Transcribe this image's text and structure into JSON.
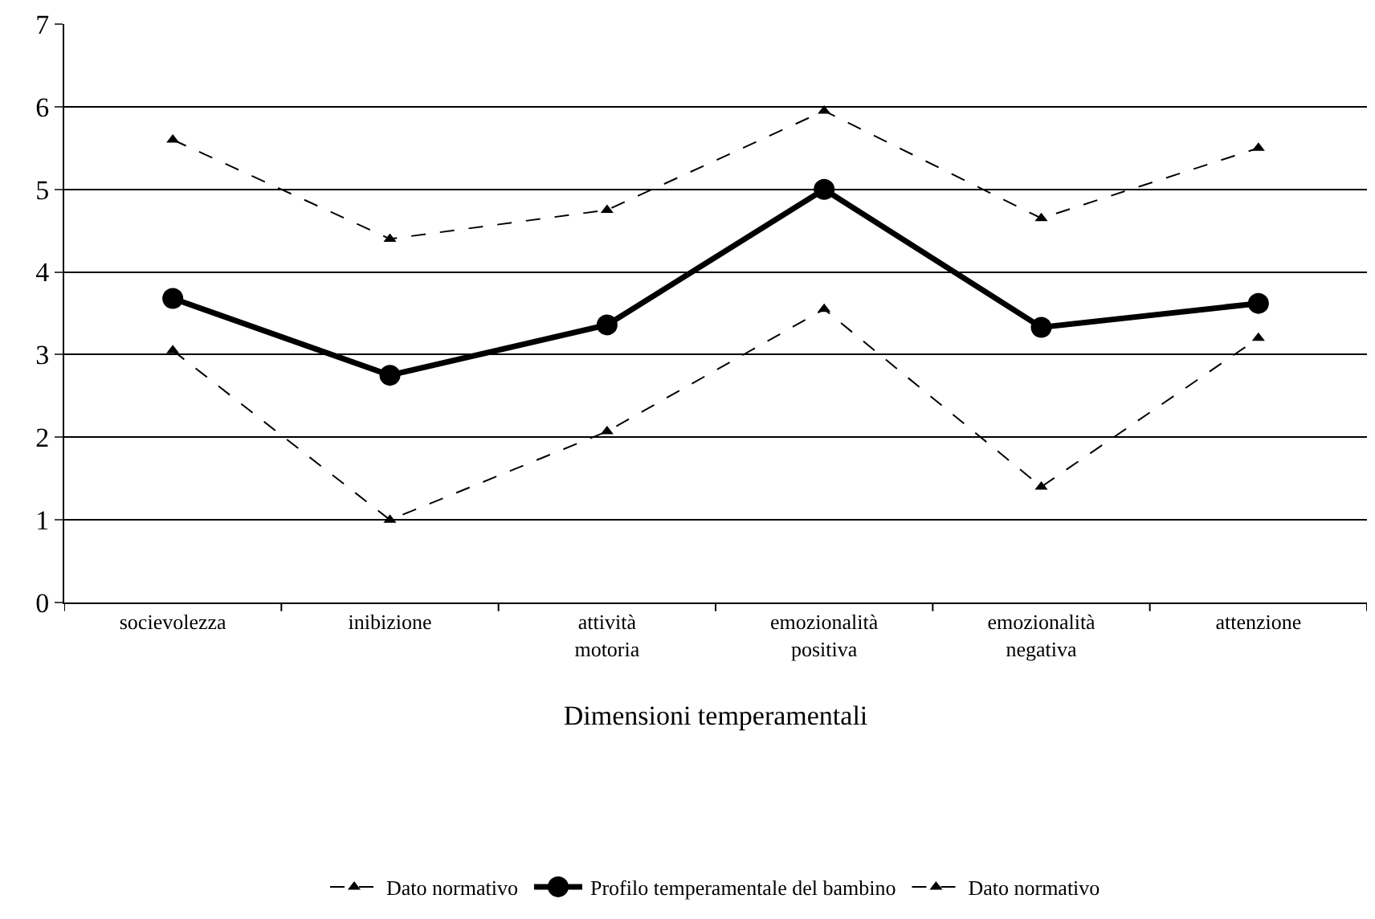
{
  "chart_data": {
    "type": "line",
    "xlabel": "Dimensioni temperamentali",
    "categories": [
      "socievolezza",
      "inibizione",
      "attività motoria",
      "emozionalità positiva",
      "emozionalità negativa",
      "attenzione"
    ],
    "series": [
      {
        "name": "Dato normativo",
        "color": "#000000",
        "marker": "triangle",
        "line_style": "dashed",
        "values": [
          5.6,
          4.4,
          4.75,
          5.95,
          4.65,
          5.5
        ]
      },
      {
        "name": "Profilo temperamentale del bambino",
        "color": "#000000",
        "marker": "circle",
        "line_style": "solid",
        "values": [
          3.68,
          2.75,
          3.36,
          5.0,
          3.33,
          3.62
        ]
      },
      {
        "name": "Dato normativo",
        "color": "#000000",
        "marker": "triangle",
        "line_style": "dashed",
        "values": [
          3.05,
          1.0,
          2.07,
          3.55,
          1.4,
          3.2
        ]
      }
    ],
    "ylim": [
      0,
      7
    ],
    "yticks": [
      0,
      1,
      2,
      3,
      4,
      5,
      6,
      7
    ],
    "grid": "y",
    "legend": "bottom"
  }
}
